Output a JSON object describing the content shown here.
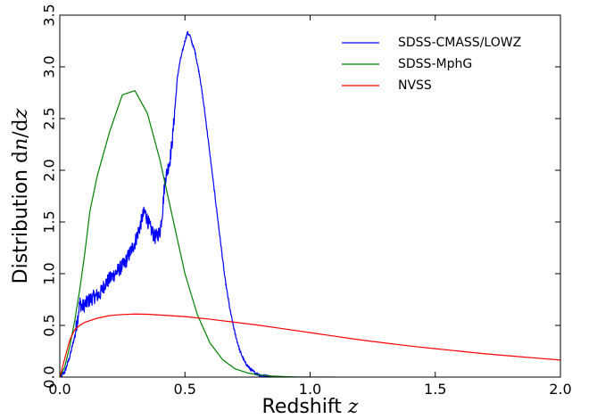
{
  "chart_data": {
    "type": "line",
    "xlabel": {
      "text": "Redshift ",
      "var": "z"
    },
    "ylabel": {
      "text": "Distribution ",
      "d1": "d",
      "var1": "n",
      "slash": "/",
      "d2": "d",
      "var2": "z"
    },
    "xlim": [
      0.0,
      2.0
    ],
    "ylim": [
      0.0,
      3.5
    ],
    "xticks": [
      0.0,
      0.5,
      1.0,
      1.5,
      2.0
    ],
    "xtick_labels": [
      "0.0",
      "0.5",
      "1.0",
      "1.5",
      "2.0"
    ],
    "yticks": [
      0.0,
      0.5,
      1.0,
      1.5,
      2.0,
      2.5,
      3.0,
      3.5
    ],
    "ytick_labels": [
      "0.0",
      "0.5",
      "1.0",
      "1.5",
      "2.0",
      "2.5",
      "3.0",
      "3.5"
    ],
    "grid": false,
    "legend_position": "top-right",
    "series": [
      {
        "name": "SDSS-CMASS/LOWZ",
        "color": "#0000ff",
        "noisy": true,
        "x": [
          0.0,
          0.02,
          0.04,
          0.06,
          0.07,
          0.08,
          0.09,
          0.1,
          0.12,
          0.14,
          0.16,
          0.18,
          0.2,
          0.22,
          0.24,
          0.26,
          0.28,
          0.3,
          0.31,
          0.32,
          0.33,
          0.34,
          0.35,
          0.36,
          0.38,
          0.4,
          0.41,
          0.42,
          0.43,
          0.44,
          0.45,
          0.46,
          0.47,
          0.48,
          0.49,
          0.5,
          0.51,
          0.52,
          0.53,
          0.54,
          0.56,
          0.58,
          0.6,
          0.62,
          0.64,
          0.66,
          0.68,
          0.7,
          0.72,
          0.74,
          0.76,
          0.78,
          0.8,
          0.82,
          0.84,
          0.86,
          0.88,
          0.9,
          0.95,
          1.0
        ],
        "y": [
          0.0,
          0.05,
          0.2,
          0.4,
          0.55,
          0.72,
          0.68,
          0.7,
          0.75,
          0.78,
          0.8,
          0.9,
          0.95,
          1.0,
          1.05,
          1.1,
          1.2,
          1.3,
          1.38,
          1.45,
          1.55,
          1.6,
          1.52,
          1.45,
          1.35,
          1.4,
          1.6,
          1.9,
          2.0,
          2.1,
          2.3,
          2.6,
          2.9,
          3.05,
          3.15,
          3.25,
          3.33,
          3.3,
          3.22,
          3.15,
          2.9,
          2.55,
          2.15,
          1.75,
          1.35,
          0.95,
          0.65,
          0.42,
          0.25,
          0.14,
          0.08,
          0.04,
          0.02,
          0.01,
          0.005,
          0.002,
          0.001,
          0.0,
          0.0,
          0.0
        ]
      },
      {
        "name": "SDSS-MphG",
        "color": "#008000",
        "noisy": false,
        "x": [
          0.0,
          0.02,
          0.04,
          0.06,
          0.08,
          0.1,
          0.12,
          0.15,
          0.2,
          0.25,
          0.3,
          0.35,
          0.4,
          0.45,
          0.5,
          0.55,
          0.6,
          0.65,
          0.7,
          0.75,
          0.8,
          0.85,
          0.9,
          0.95,
          1.0,
          1.05,
          1.1
        ],
        "y": [
          0.0,
          0.1,
          0.3,
          0.55,
          0.85,
          1.2,
          1.6,
          1.95,
          2.38,
          2.73,
          2.77,
          2.55,
          2.1,
          1.55,
          1.0,
          0.6,
          0.33,
          0.17,
          0.08,
          0.04,
          0.02,
          0.01,
          0.005,
          0.0,
          0.0,
          0.0,
          0.0
        ]
      },
      {
        "name": "NVSS",
        "color": "#ff0000",
        "noisy": false,
        "x": [
          0.0,
          0.02,
          0.04,
          0.06,
          0.08,
          0.1,
          0.15,
          0.2,
          0.25,
          0.3,
          0.35,
          0.4,
          0.5,
          0.6,
          0.7,
          0.8,
          0.9,
          1.0,
          1.1,
          1.2,
          1.3,
          1.4,
          1.5,
          1.6,
          1.7,
          1.8,
          1.9,
          2.0
        ],
        "y": [
          0.0,
          0.18,
          0.36,
          0.46,
          0.5,
          0.53,
          0.57,
          0.595,
          0.605,
          0.61,
          0.608,
          0.6,
          0.585,
          0.56,
          0.53,
          0.5,
          0.465,
          0.43,
          0.395,
          0.36,
          0.33,
          0.3,
          0.275,
          0.25,
          0.225,
          0.205,
          0.185,
          0.165
        ]
      }
    ]
  }
}
